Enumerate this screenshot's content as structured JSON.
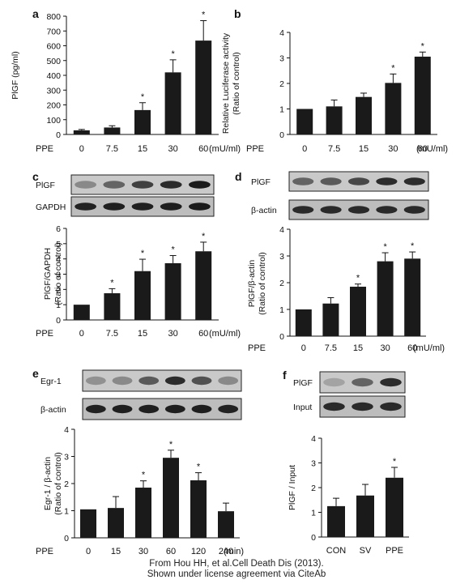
{
  "caption": {
    "line1": "From Hou HH, et al.Cell Death Dis (2013).",
    "line2": "Shown under license agreement via CiteAb"
  },
  "chart_data": [
    {
      "panel": "a",
      "type": "bar",
      "categories": [
        "0",
        "7.5",
        "15",
        "30",
        "60"
      ],
      "values": [
        28,
        47,
        165,
        420,
        635
      ],
      "errors": [
        6,
        12,
        50,
        85,
        135
      ],
      "significant": [
        false,
        false,
        true,
        true,
        true
      ],
      "ylabel": "PlGF (pg/ml)",
      "ylim": [
        0,
        800
      ],
      "yticks": [
        0,
        100,
        200,
        300,
        400,
        500,
        600,
        700,
        800
      ],
      "x_prefix": "PPE",
      "x_unit": "(mU/ml)"
    },
    {
      "panel": "b",
      "type": "bar",
      "categories": [
        "0",
        "7.5",
        "15",
        "30",
        "60"
      ],
      "values": [
        1.0,
        1.1,
        1.47,
        2.02,
        3.05
      ],
      "errors": [
        0.0,
        0.25,
        0.15,
        0.35,
        0.18
      ],
      "significant": [
        false,
        false,
        false,
        true,
        true
      ],
      "ylabel": "Relative Luciferase activity",
      "ylabel2": "(Ratio of control)",
      "ylim": [
        0,
        4
      ],
      "yticks": [
        0,
        1,
        2,
        3,
        4
      ],
      "x_prefix": "PPE",
      "x_unit": "(mU/ml)"
    },
    {
      "panel": "c",
      "type": "bar",
      "blots": [
        "PlGF",
        "GAPDH"
      ],
      "categories": [
        "0",
        "7.5",
        "15",
        "30",
        "60"
      ],
      "values": [
        1.0,
        1.75,
        3.2,
        3.72,
        4.5
      ],
      "errors": [
        0.0,
        0.3,
        0.78,
        0.5,
        0.6
      ],
      "significant": [
        false,
        true,
        true,
        true,
        true
      ],
      "ylabel": "PlGF/GAPDH",
      "ylabel2": "(Ratio of control)",
      "ylim": [
        0,
        6
      ],
      "yticks": [
        0,
        1,
        2,
        3,
        4,
        5,
        6
      ],
      "x_prefix": "PPE",
      "x_unit": "(mU/ml)"
    },
    {
      "panel": "d",
      "type": "bar",
      "blots": [
        "PlGF",
        "β-actin"
      ],
      "categories": [
        "0",
        "7.5",
        "15",
        "30",
        "60"
      ],
      "values": [
        1.0,
        1.22,
        1.85,
        2.8,
        2.9
      ],
      "errors": [
        0.0,
        0.22,
        0.1,
        0.32,
        0.25
      ],
      "significant": [
        false,
        false,
        true,
        true,
        true
      ],
      "ylabel": "PlGF/β-actin",
      "ylabel2": "(Ratio of control)",
      "ylim": [
        0,
        4
      ],
      "yticks": [
        0,
        1,
        2,
        3,
        4
      ],
      "x_prefix": "PPE",
      "x_unit": "(mU/ml)"
    },
    {
      "panel": "e",
      "type": "bar",
      "blots": [
        "Egr-1",
        "β-actin"
      ],
      "categories": [
        "0",
        "15",
        "30",
        "60",
        "120",
        "240"
      ],
      "values": [
        1.05,
        1.1,
        1.85,
        2.95,
        2.12,
        0.98
      ],
      "errors": [
        0.0,
        0.42,
        0.25,
        0.28,
        0.28,
        0.3
      ],
      "significant": [
        false,
        false,
        true,
        true,
        true,
        false
      ],
      "ylabel": "Egr-1 / β-actin",
      "ylabel2": "(Ratio of control)",
      "ylim": [
        0,
        4
      ],
      "yticks": [
        0,
        1,
        2,
        3,
        4
      ],
      "x_prefix": "PPE",
      "x_unit": "(min)"
    },
    {
      "panel": "f",
      "type": "bar",
      "blots": [
        "PlGF",
        "Input"
      ],
      "categories": [
        "CON",
        "SV",
        "PPE"
      ],
      "values": [
        1.25,
        1.68,
        2.4
      ],
      "errors": [
        0.32,
        0.45,
        0.42
      ],
      "significant": [
        false,
        false,
        true
      ],
      "ylabel": "PlGF / Input",
      "ylim": [
        0,
        4
      ],
      "yticks": [
        0,
        1,
        2,
        3,
        4
      ],
      "x_prefix": "",
      "x_unit": ""
    }
  ]
}
